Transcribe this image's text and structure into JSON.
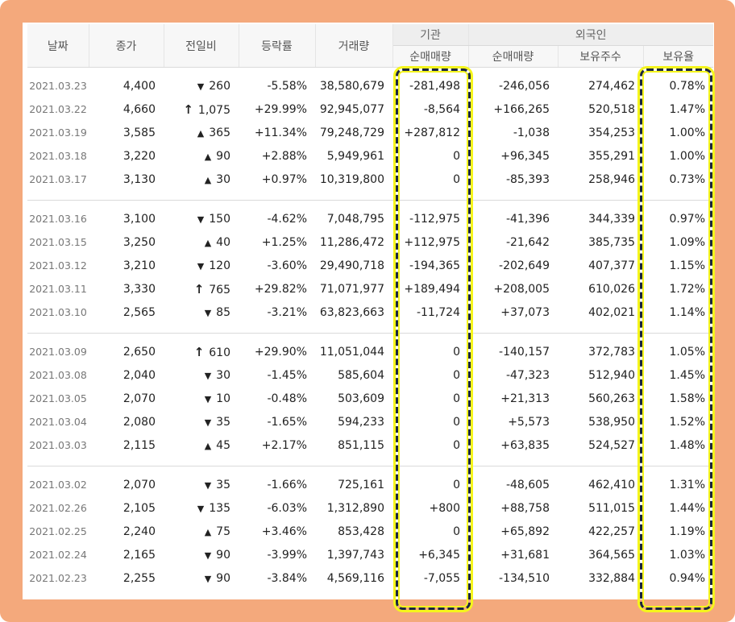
{
  "headers": {
    "date": "날짜",
    "close": "종가",
    "change": "전일비",
    "rate": "등락률",
    "volume": "거래량",
    "institution_group": "기관",
    "institution_net": "순매매량",
    "foreign_group": "외국인",
    "foreign_net": "순매매량",
    "foreign_shares": "보유주수",
    "foreign_ratio": "보유율"
  },
  "colors": {
    "up": "#d20f0f",
    "down": "#1161c9",
    "frame": "#f4a97c",
    "highlight_dash": "#1b2640",
    "highlight_glow": "#f5f51c"
  },
  "groups": [
    {
      "rows": [
        {
          "date": "2021.03.23",
          "close": "4,400",
          "dir": "down",
          "change": "260",
          "rate": "-5.58%",
          "volume": "38,580,679",
          "inst": "-281,498",
          "foreign": "-246,056",
          "shares": "274,462",
          "ratio": "0.78%"
        },
        {
          "date": "2021.03.22",
          "close": "4,660",
          "dir": "limit-up",
          "change": "1,075",
          "rate": "+29.99%",
          "volume": "92,945,077",
          "inst": "-8,564",
          "foreign": "+166,265",
          "shares": "520,518",
          "ratio": "1.47%"
        },
        {
          "date": "2021.03.19",
          "close": "3,585",
          "dir": "up",
          "change": "365",
          "rate": "+11.34%",
          "volume": "79,248,729",
          "inst": "+287,812",
          "foreign": "-1,038",
          "shares": "354,253",
          "ratio": "1.00%"
        },
        {
          "date": "2021.03.18",
          "close": "3,220",
          "dir": "up",
          "change": "90",
          "rate": "+2.88%",
          "volume": "5,949,961",
          "inst": "0",
          "foreign": "+96,345",
          "shares": "355,291",
          "ratio": "1.00%"
        },
        {
          "date": "2021.03.17",
          "close": "3,130",
          "dir": "up",
          "change": "30",
          "rate": "+0.97%",
          "volume": "10,319,800",
          "inst": "0",
          "foreign": "-85,393",
          "shares": "258,946",
          "ratio": "0.73%"
        }
      ]
    },
    {
      "rows": [
        {
          "date": "2021.03.16",
          "close": "3,100",
          "dir": "down",
          "change": "150",
          "rate": "-4.62%",
          "volume": "7,048,795",
          "inst": "-112,975",
          "foreign": "-41,396",
          "shares": "344,339",
          "ratio": "0.97%"
        },
        {
          "date": "2021.03.15",
          "close": "3,250",
          "dir": "up",
          "change": "40",
          "rate": "+1.25%",
          "volume": "11,286,472",
          "inst": "+112,975",
          "foreign": "-21,642",
          "shares": "385,735",
          "ratio": "1.09%"
        },
        {
          "date": "2021.03.12",
          "close": "3,210",
          "dir": "down",
          "change": "120",
          "rate": "-3.60%",
          "volume": "29,490,718",
          "inst": "-194,365",
          "foreign": "-202,649",
          "shares": "407,377",
          "ratio": "1.15%"
        },
        {
          "date": "2021.03.11",
          "close": "3,330",
          "dir": "limit-up",
          "change": "765",
          "rate": "+29.82%",
          "volume": "71,071,977",
          "inst": "+189,494",
          "foreign": "+208,005",
          "shares": "610,026",
          "ratio": "1.72%"
        },
        {
          "date": "2021.03.10",
          "close": "2,565",
          "dir": "down",
          "change": "85",
          "rate": "-3.21%",
          "volume": "63,823,663",
          "inst": "-11,724",
          "foreign": "+37,073",
          "shares": "402,021",
          "ratio": "1.14%"
        }
      ]
    },
    {
      "rows": [
        {
          "date": "2021.03.09",
          "close": "2,650",
          "dir": "limit-up",
          "change": "610",
          "rate": "+29.90%",
          "volume": "11,051,044",
          "inst": "0",
          "foreign": "-140,157",
          "shares": "372,783",
          "ratio": "1.05%"
        },
        {
          "date": "2021.03.08",
          "close": "2,040",
          "dir": "down",
          "change": "30",
          "rate": "-1.45%",
          "volume": "585,604",
          "inst": "0",
          "foreign": "-47,323",
          "shares": "512,940",
          "ratio": "1.45%"
        },
        {
          "date": "2021.03.05",
          "close": "2,070",
          "dir": "down",
          "change": "10",
          "rate": "-0.48%",
          "volume": "503,609",
          "inst": "0",
          "foreign": "+21,313",
          "shares": "560,263",
          "ratio": "1.58%"
        },
        {
          "date": "2021.03.04",
          "close": "2,080",
          "dir": "down",
          "change": "35",
          "rate": "-1.65%",
          "volume": "594,233",
          "inst": "0",
          "foreign": "+5,573",
          "shares": "538,950",
          "ratio": "1.52%"
        },
        {
          "date": "2021.03.03",
          "close": "2,115",
          "dir": "up",
          "change": "45",
          "rate": "+2.17%",
          "volume": "851,115",
          "inst": "0",
          "foreign": "+63,835",
          "shares": "524,527",
          "ratio": "1.48%"
        }
      ]
    },
    {
      "rows": [
        {
          "date": "2021.03.02",
          "close": "2,070",
          "dir": "down",
          "change": "35",
          "rate": "-1.66%",
          "volume": "725,161",
          "inst": "0",
          "foreign": "-48,605",
          "shares": "462,410",
          "ratio": "1.31%"
        },
        {
          "date": "2021.02.26",
          "close": "2,105",
          "dir": "down",
          "change": "135",
          "rate": "-6.03%",
          "volume": "1,312,890",
          "inst": "+800",
          "foreign": "+88,758",
          "shares": "511,015",
          "ratio": "1.44%"
        },
        {
          "date": "2021.02.25",
          "close": "2,240",
          "dir": "up",
          "change": "75",
          "rate": "+3.46%",
          "volume": "853,428",
          "inst": "0",
          "foreign": "+65,892",
          "shares": "422,257",
          "ratio": "1.19%"
        },
        {
          "date": "2021.02.24",
          "close": "2,165",
          "dir": "down",
          "change": "90",
          "rate": "-3.99%",
          "volume": "1,397,743",
          "inst": "+6,345",
          "foreign": "+31,681",
          "shares": "364,565",
          "ratio": "1.03%"
        },
        {
          "date": "2021.02.23",
          "close": "2,255",
          "dir": "down",
          "change": "90",
          "rate": "-3.84%",
          "volume": "4,569,116",
          "inst": "-7,055",
          "foreign": "-134,510",
          "shares": "332,884",
          "ratio": "0.94%"
        }
      ]
    }
  ]
}
